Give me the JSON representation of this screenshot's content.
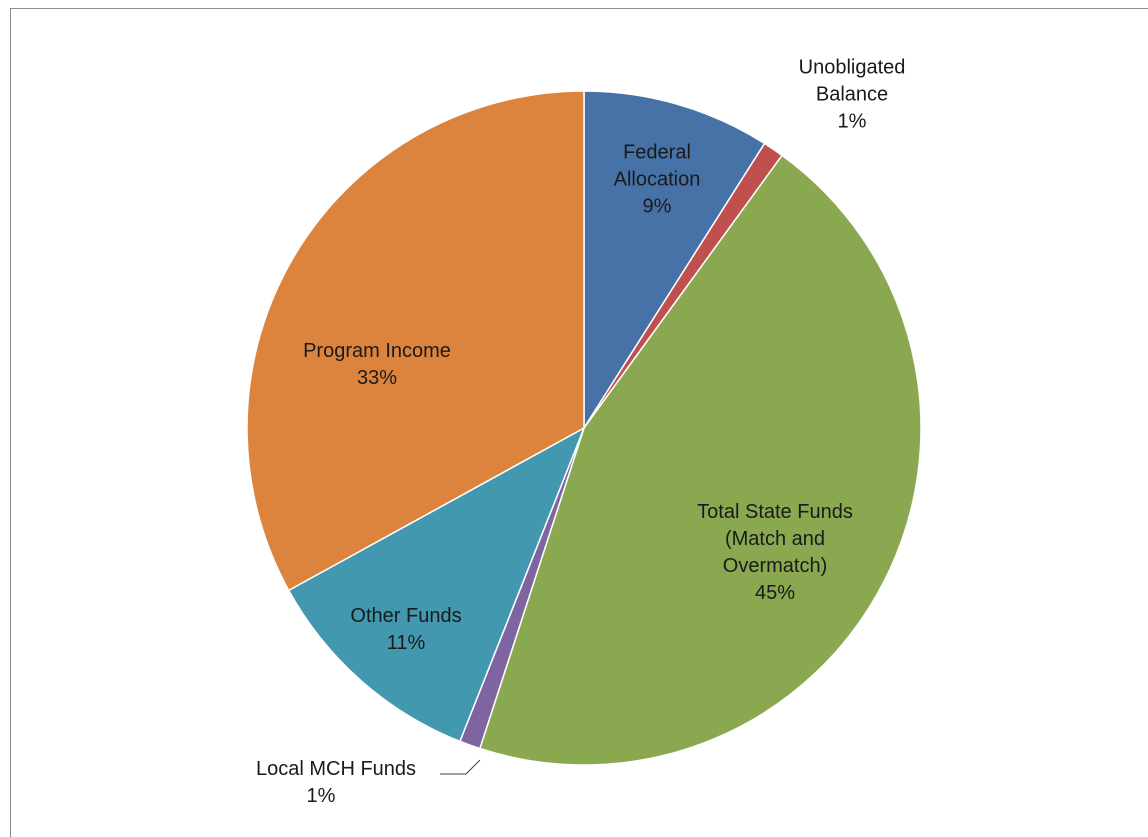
{
  "chart_data": {
    "type": "pie",
    "categories": [
      "Federal Allocation",
      "Unobligated Balance",
      "Total State Funds (Match and Overmatch)",
      "Local MCH Funds",
      "Other Funds",
      "Program Income"
    ],
    "values": [
      9,
      1,
      45,
      1,
      11,
      33
    ],
    "value_labels": [
      "9%",
      "1%",
      "45%",
      "1%",
      "11%",
      "33%"
    ],
    "colors": [
      "#4672a8",
      "#c0504d",
      "#8aa84f",
      "#7f64a2",
      "#4198af",
      "#dc843e"
    ]
  }
}
